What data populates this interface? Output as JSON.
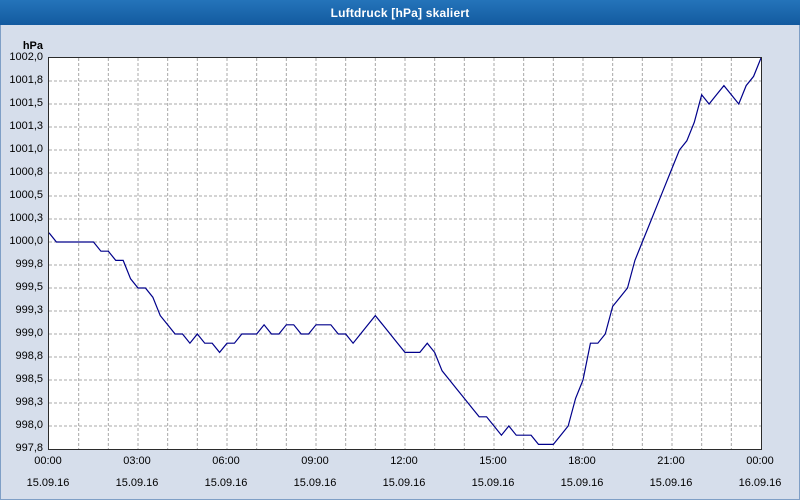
{
  "window": {
    "title": "Luftdruck [hPa] skaliert"
  },
  "chart": {
    "unit_label": "hPa",
    "line_color": "#00008b",
    "grid_color": "#a8a8a8",
    "plot_background": "#ffffff",
    "y_ticks": [
      "1002,0",
      "1001,8",
      "1001,5",
      "1001,3",
      "1001,0",
      "1000,8",
      "1000,5",
      "1000,3",
      "1000,0",
      "999,8",
      "999,5",
      "999,3",
      "999,0",
      "998,8",
      "998,5",
      "998,3",
      "998,0",
      "997,8"
    ],
    "x_ticks": [
      {
        "time": "00:00",
        "date": "15.09.16"
      },
      {
        "time": "03:00",
        "date": "15.09.16"
      },
      {
        "time": "06:00",
        "date": "15.09.16"
      },
      {
        "time": "09:00",
        "date": "15.09.16"
      },
      {
        "time": "12:00",
        "date": "15.09.16"
      },
      {
        "time": "15:00",
        "date": "15.09.16"
      },
      {
        "time": "18:00",
        "date": "15.09.16"
      },
      {
        "time": "21:00",
        "date": "15.09.16"
      },
      {
        "time": "00:00",
        "date": "16.09.16"
      }
    ]
  },
  "chart_data": {
    "type": "line",
    "title": "Luftdruck [hPa] skaliert",
    "xlabel": "",
    "ylabel": "hPa",
    "ylim": [
      997.75,
      1002.0
    ],
    "xlim_hours": [
      0,
      24
    ],
    "grid": true,
    "legend": false,
    "x_start_hour": 0,
    "x_step_hours": 0.25,
    "values": [
      1000.1,
      1000.0,
      1000.0,
      1000.0,
      1000.0,
      1000.0,
      1000.0,
      999.9,
      999.9,
      999.8,
      999.8,
      999.6,
      999.5,
      999.5,
      999.4,
      999.2,
      999.1,
      999.0,
      999.0,
      998.9,
      999.0,
      998.9,
      998.9,
      998.8,
      998.9,
      998.9,
      999.0,
      999.0,
      999.0,
      999.1,
      999.0,
      999.0,
      999.1,
      999.1,
      999.0,
      999.0,
      999.1,
      999.1,
      999.1,
      999.0,
      999.0,
      998.9,
      999.0,
      999.1,
      999.2,
      999.1,
      999.0,
      998.9,
      998.8,
      998.8,
      998.8,
      998.9,
      998.8,
      998.6,
      998.5,
      998.4,
      998.3,
      998.2,
      998.1,
      998.1,
      998.0,
      997.9,
      998.0,
      997.9,
      997.9,
      997.9,
      997.8,
      997.8,
      997.8,
      997.9,
      998.0,
      998.3,
      998.5,
      998.9,
      998.9,
      999.0,
      999.3,
      999.4,
      999.5,
      999.8,
      1000.0,
      1000.2,
      1000.4,
      1000.6,
      1000.8,
      1001.0,
      1001.1,
      1001.3,
      1001.6,
      1001.5,
      1001.6,
      1001.7,
      1001.6,
      1001.5,
      1001.7,
      1001.8,
      1002.0
    ]
  }
}
